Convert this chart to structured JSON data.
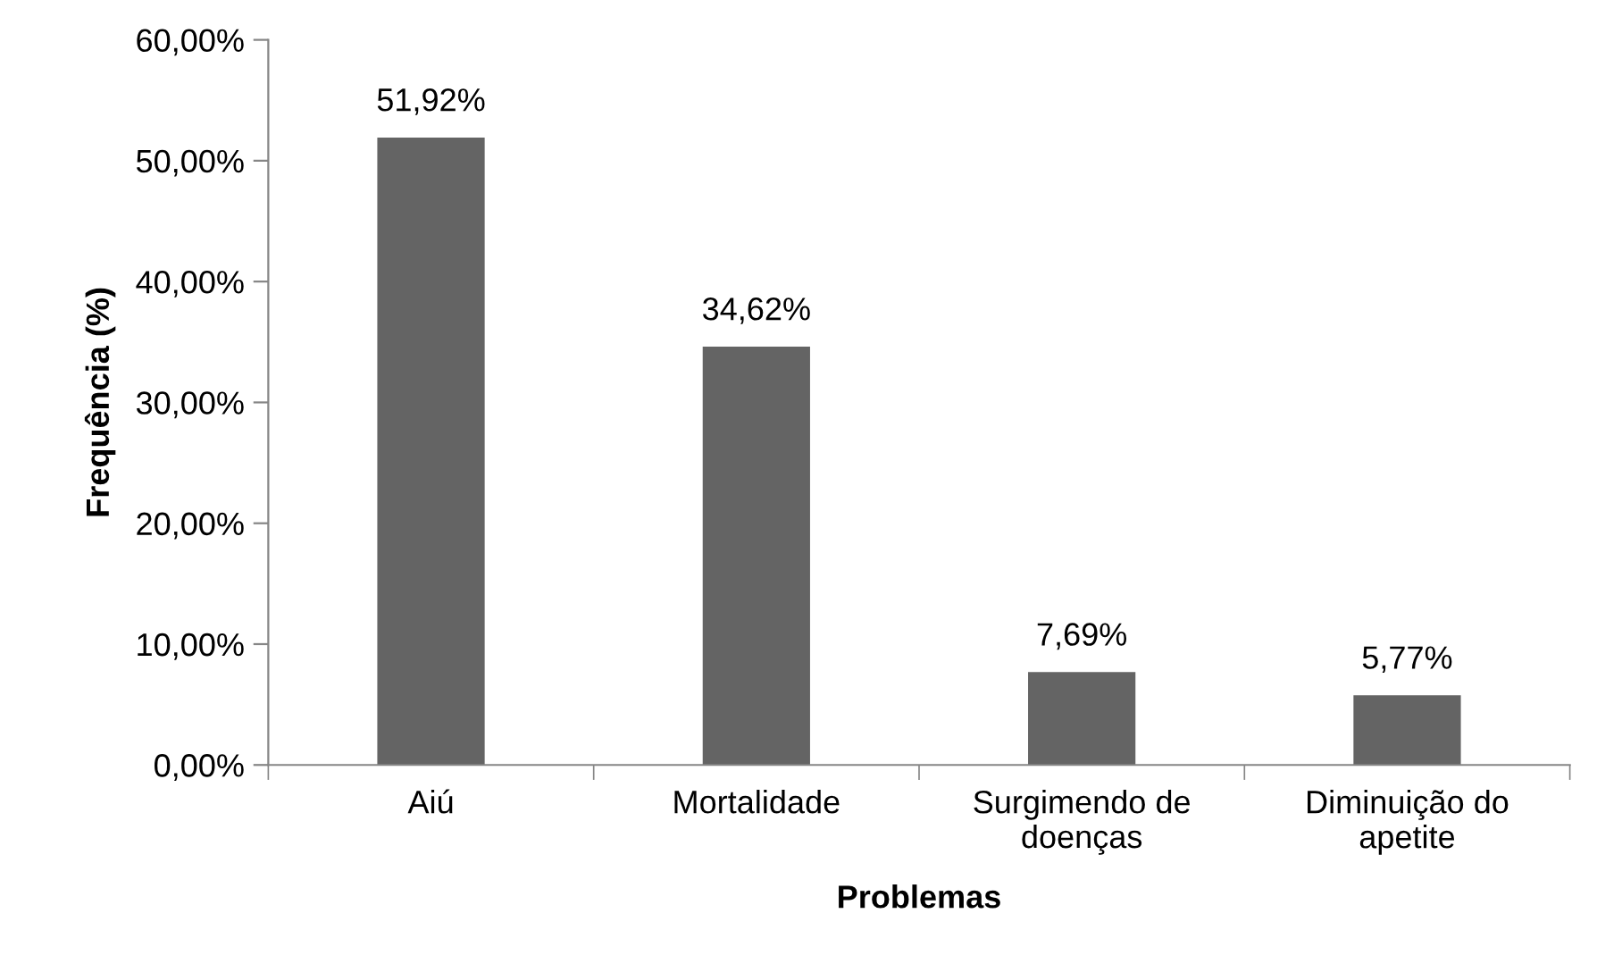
{
  "chart_data": {
    "type": "bar",
    "xlabel": "Problemas",
    "ylabel": "Frequência (%)",
    "categories": [
      "Aiú",
      "Mortalidade",
      "Surgimendo de\ndoenças",
      "Diminuição do\napetite"
    ],
    "values": [
      51.92,
      34.62,
      7.69,
      5.77
    ],
    "value_labels": [
      "51,92%",
      "34,62%",
      "7,69%",
      "5,77%"
    ],
    "color": "#646464",
    "ylim": [
      0,
      60
    ],
    "yticks": [
      {
        "value": 0,
        "label": "0,00%"
      },
      {
        "value": 10,
        "label": "10,00%"
      },
      {
        "value": 20,
        "label": "20,00%"
      },
      {
        "value": 30,
        "label": "30,00%"
      },
      {
        "value": 40,
        "label": "40,00%"
      },
      {
        "value": 50,
        "label": "50,00%"
      },
      {
        "value": 60,
        "label": "60,00%"
      }
    ],
    "grid": false,
    "legend": false
  }
}
